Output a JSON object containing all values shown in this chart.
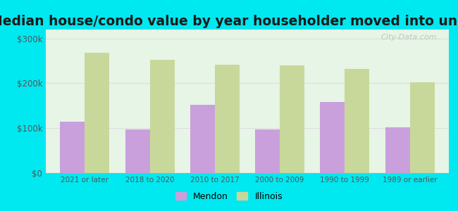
{
  "title": "Median house/condo value by year householder moved into unit",
  "categories": [
    "2021 or later",
    "2018 to 2020",
    "2010 to 2017",
    "2000 to 2009",
    "1990 to 1999",
    "1989 or earlier"
  ],
  "mendon_values": [
    115000,
    97000,
    152000,
    97000,
    158000,
    102000
  ],
  "illinois_values": [
    268000,
    252000,
    242000,
    240000,
    232000,
    202000
  ],
  "mendon_color": "#c9a0dc",
  "illinois_color": "#c8d89a",
  "background_color": "#e6f5e6",
  "outer_background": "#00e8f0",
  "ylim": [
    0,
    320000
  ],
  "yticks": [
    0,
    100000,
    200000,
    300000
  ],
  "ytick_labels": [
    "$0",
    "$100k",
    "$200k",
    "$300k"
  ],
  "legend_mendon": "Mendon",
  "legend_illinois": "Illinois",
  "watermark": "City-Data.com",
  "title_fontsize": 13.5,
  "bar_width": 0.38
}
